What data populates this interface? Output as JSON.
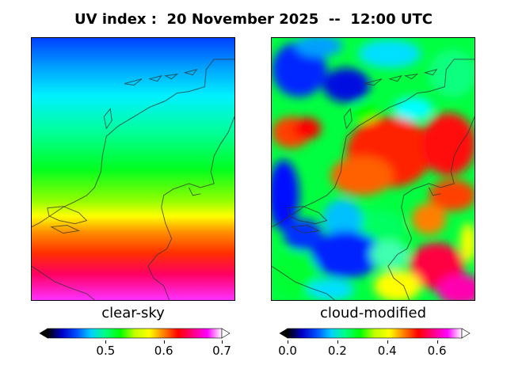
{
  "title": "UV index :  20 November 2025  --  12:00 UTC",
  "panels": {
    "left": {
      "label": "clear-sky"
    },
    "right": {
      "label": "cloud-modified"
    }
  },
  "colorbars": {
    "left": {
      "ticks": [
        "0.5",
        "0.6",
        "0.7"
      ],
      "tick_values": [
        0.5,
        0.6,
        0.7
      ],
      "range": [
        0.4,
        0.7
      ],
      "extend": "both"
    },
    "right": {
      "ticks": [
        "0.0",
        "0.2",
        "0.4",
        "0.6"
      ],
      "tick_values": [
        0.0,
        0.2,
        0.4,
        0.6
      ],
      "range": [
        0.0,
        0.7
      ],
      "extend": "both"
    }
  },
  "colormap": [
    "#000000",
    "#0000c8",
    "#0050ff",
    "#00d0ff",
    "#00ff80",
    "#00ff00",
    "#c0ff00",
    "#ffff00",
    "#ff8000",
    "#ff0000",
    "#ff0080",
    "#ff00ff",
    "#ffffff"
  ],
  "colors": {
    "coastline": "#333333"
  }
}
